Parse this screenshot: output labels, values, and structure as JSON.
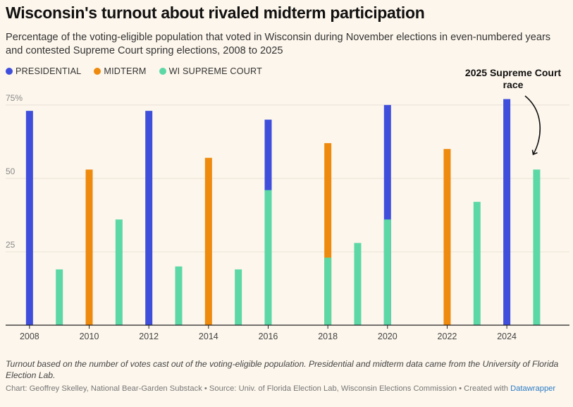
{
  "title": "Wisconsin's turnout about rivaled midterm participation",
  "subtitle": "Percentage of the voting-eligible population that voted in Wisconsin during November elections in even-numbered years and contested Supreme Court spring elections, 2008 to 2025",
  "legend": [
    {
      "label": "PRESIDENTIAL",
      "color": "#3f4fdc"
    },
    {
      "label": "MIDTERM",
      "color": "#ee8a0e"
    },
    {
      "label": "WI SUPREME COURT",
      "color": "#5cd8a6"
    }
  ],
  "chart_data": {
    "type": "bar",
    "title": "Wisconsin's turnout about rivaled midterm participation",
    "xlabel": "",
    "ylabel": "",
    "ylim": [
      0,
      80
    ],
    "yticks": [
      25,
      50,
      75
    ],
    "ytick_labels": [
      "25",
      "50",
      "75%"
    ],
    "xticks": [
      2008,
      2010,
      2012,
      2014,
      2016,
      2018,
      2020,
      2022,
      2024
    ],
    "xlim": [
      2007.2,
      2026.1
    ],
    "series": [
      {
        "name": "PRESIDENTIAL",
        "color": "#3f4fdc",
        "points": [
          {
            "x": 2008,
            "y": 73
          },
          {
            "x": 2012,
            "y": 73
          },
          {
            "x": 2016,
            "y": 70
          },
          {
            "x": 2020,
            "y": 75
          },
          {
            "x": 2024,
            "y": 77
          }
        ]
      },
      {
        "name": "MIDTERM",
        "color": "#ee8a0e",
        "points": [
          {
            "x": 2010,
            "y": 53
          },
          {
            "x": 2014,
            "y": 57
          },
          {
            "x": 2018,
            "y": 62
          },
          {
            "x": 2022,
            "y": 60
          }
        ]
      },
      {
        "name": "WI SUPREME COURT",
        "color": "#5cd8a6",
        "points": [
          {
            "x": 2009,
            "y": 19
          },
          {
            "x": 2011,
            "y": 36
          },
          {
            "x": 2013,
            "y": 20
          },
          {
            "x": 2015,
            "y": 19
          },
          {
            "x": 2016,
            "y": 46
          },
          {
            "x": 2018,
            "y": 23
          },
          {
            "x": 2019,
            "y": 28
          },
          {
            "x": 2020,
            "y": 36
          },
          {
            "x": 2023,
            "y": 42
          },
          {
            "x": 2025,
            "y": 53
          }
        ]
      }
    ],
    "annotations": [
      {
        "text_lines": [
          "2025 Supreme Court",
          "race"
        ],
        "target": {
          "x": 2025,
          "y": 53
        }
      }
    ]
  },
  "notes": "Turnout based on the number of votes cast out of the voting-eligible population. Presidential and midterm data came from the University of Florida Election Lab.",
  "credits": {
    "text": "Chart: Geoffrey Skelley, National Bear-Garden Substack • Source: Univ. of Florida Election Lab, Wisconsin Elections Commission • Created with",
    "link": "Datawrapper"
  }
}
